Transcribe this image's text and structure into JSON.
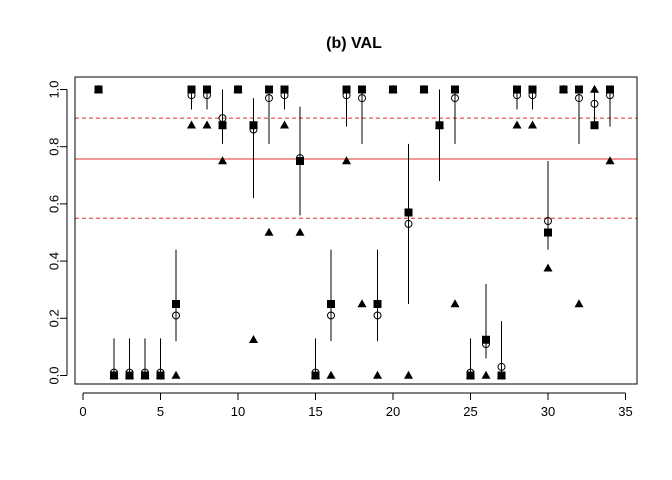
{
  "chart_data": {
    "type": "scatter",
    "title": "(b) VAL",
    "xlabel": "",
    "ylabel": "",
    "xlim": [
      0,
      35
    ],
    "ylim": [
      0,
      1
    ],
    "x_ticks": [
      "0",
      "5",
      "10",
      "15",
      "20",
      "25",
      "30",
      "35"
    ],
    "y_ticks": [
      "0.0",
      "0.2",
      "0.4",
      "0.6",
      "0.8",
      "1.0"
    ],
    "x": [
      1,
      2,
      3,
      4,
      5,
      6,
      7,
      8,
      9,
      10,
      11,
      12,
      13,
      14,
      15,
      16,
      17,
      18,
      19,
      20,
      21,
      22,
      23,
      24,
      25,
      26,
      27,
      28,
      29,
      30,
      31,
      32,
      33,
      34
    ],
    "series": [
      {
        "marker": "filled-square",
        "values": [
          1,
          0,
          0,
          0,
          0,
          0.25,
          1,
          1,
          0.875,
          1,
          0.875,
          1,
          1,
          0.75,
          0,
          0.25,
          1,
          1,
          0.25,
          1,
          0.57,
          1,
          0.875,
          1,
          0,
          0.125,
          0,
          1,
          1,
          0.5,
          1,
          1,
          0.875,
          1
        ]
      },
      {
        "marker": "open-circle",
        "values": [
          1,
          0.01,
          0.01,
          0.01,
          0.01,
          0.21,
          0.98,
          0.98,
          0.9,
          1,
          0.86,
          0.97,
          0.98,
          0.76,
          0.01,
          0.21,
          0.98,
          0.97,
          0.21,
          1,
          0.53,
          1,
          0.875,
          0.97,
          0.01,
          0.11,
          0.03,
          0.98,
          0.98,
          0.54,
          1,
          0.97,
          0.95,
          0.98
        ]
      },
      {
        "marker": "filled-triangle",
        "values": [
          1,
          0,
          0,
          0,
          0,
          0,
          0.875,
          0.875,
          0.75,
          1,
          0.125,
          0.5,
          0.875,
          0.5,
          0,
          0,
          0.75,
          0.25,
          0,
          1,
          0,
          1,
          0.875,
          0.25,
          0,
          0,
          0,
          0.875,
          0.875,
          0.375,
          1,
          0.25,
          1,
          0.75
        ]
      }
    ],
    "intervals": [
      [
        1,
        1
      ],
      [
        0,
        0.13
      ],
      [
        0,
        0.13
      ],
      [
        0,
        0.13
      ],
      [
        0,
        0.13
      ],
      [
        0.12,
        0.44
      ],
      [
        0.93,
        1
      ],
      [
        0.93,
        1
      ],
      [
        0.81,
        1
      ],
      [
        1,
        1
      ],
      [
        0.62,
        0.97
      ],
      [
        0.81,
        1
      ],
      [
        0.93,
        1
      ],
      [
        0.56,
        0.94
      ],
      [
        0,
        0.13
      ],
      [
        0.12,
        0.44
      ],
      [
        0.87,
        1
      ],
      [
        0.81,
        1
      ],
      [
        0.12,
        0.44
      ],
      [
        1,
        1
      ],
      [
        0.25,
        0.81
      ],
      [
        1,
        1
      ],
      [
        0.68,
        1
      ],
      [
        0.81,
        1
      ],
      [
        0,
        0.13
      ],
      [
        0.06,
        0.32
      ],
      [
        0,
        0.19
      ],
      [
        0.93,
        1
      ],
      [
        0.93,
        1
      ],
      [
        0.44,
        0.75
      ],
      [
        1,
        1
      ],
      [
        0.81,
        1
      ],
      [
        0.87,
        1
      ],
      [
        0.87,
        1
      ]
    ],
    "reference_lines": [
      {
        "value": 0.757,
        "style": "solid",
        "color": "#e0322e"
      },
      {
        "value": 0.9,
        "style": "dashed",
        "color": "#e0322e"
      },
      {
        "value": 0.55,
        "style": "dashed",
        "color": "#e0322e"
      }
    ],
    "grid": false,
    "legend": "none"
  }
}
